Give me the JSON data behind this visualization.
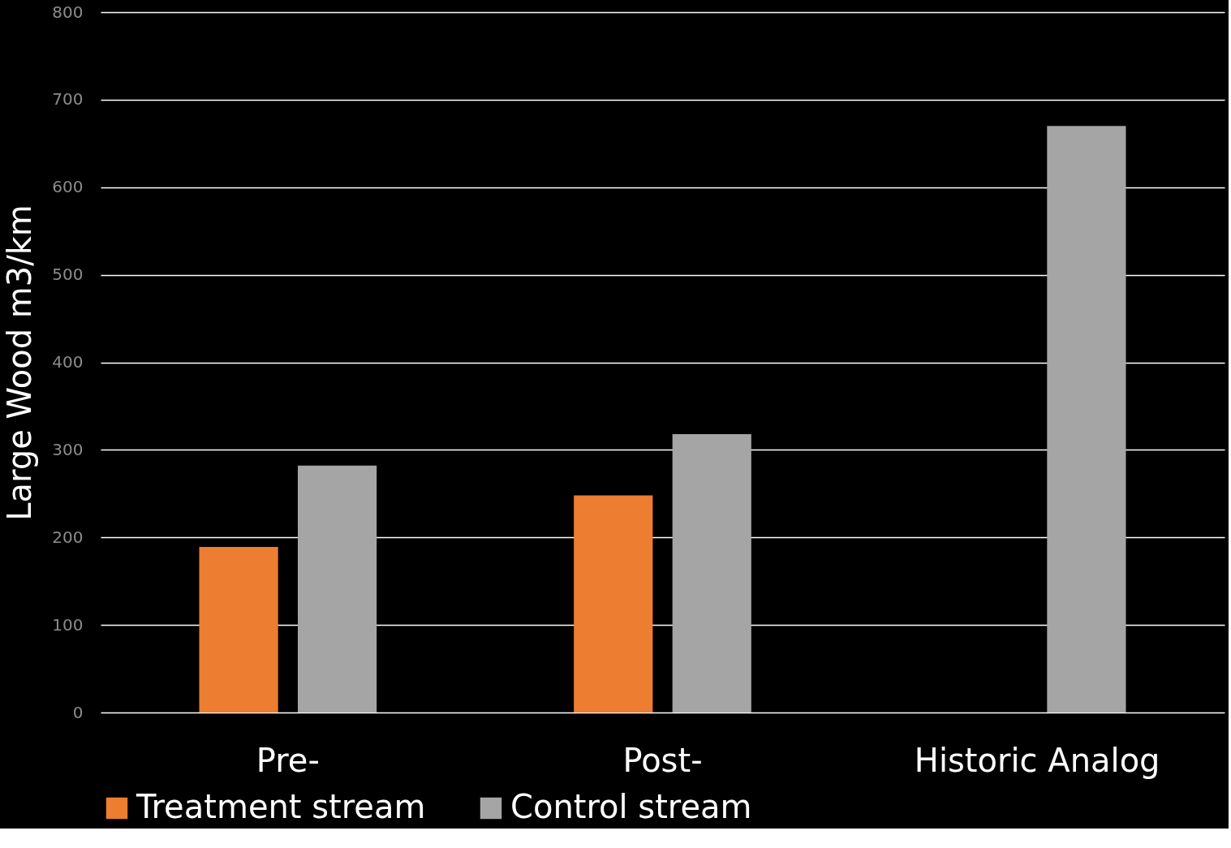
{
  "chart_data": {
    "type": "bar",
    "ylabel": "Large Wood m3/km",
    "categories": [
      "Pre-",
      "Post-",
      "Historic Analog"
    ],
    "series": [
      {
        "name": "Treatment stream",
        "color": "#ed7d31",
        "values": [
          189,
          248,
          null
        ]
      },
      {
        "name": "Control stream",
        "color": "#a5a5a5",
        "values": [
          282,
          318,
          670
        ]
      }
    ],
    "ylim": [
      0,
      800
    ],
    "yticks": [
      0,
      100,
      200,
      300,
      400,
      500,
      600,
      700,
      800
    ],
    "grid": "y",
    "legend": "bottom"
  }
}
